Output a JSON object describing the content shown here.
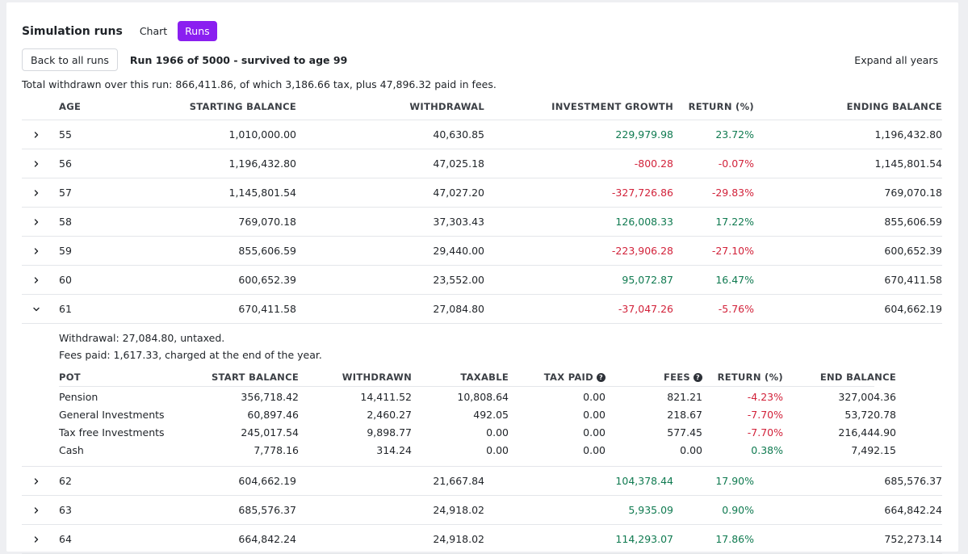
{
  "header": {
    "title": "Simulation runs",
    "tabs": [
      {
        "label": "Chart",
        "active": false
      },
      {
        "label": "Runs",
        "active": true
      }
    ]
  },
  "run": {
    "back_label": "Back to all runs",
    "title": "Run 1966 of 5000 - survived to age 99",
    "expand_all_label": "Expand all years",
    "summary": "Total withdrawn over this run: 866,411.86, of which 3,186.66 tax, plus 47,896.32 paid in fees."
  },
  "table": {
    "columns": {
      "age": "AGE",
      "start": "STARTING BALANCE",
      "withdrawal": "WITHDRAWAL",
      "growth": "INVESTMENT GROWTH",
      "return": "RETURN (%)",
      "end": "ENDING BALANCE"
    },
    "rows_before": [
      {
        "age": "55",
        "start": "1,010,000.00",
        "withdrawal": "40,630.85",
        "growth": "229,979.98",
        "return": "23.72%",
        "end": "1,196,432.80",
        "sign": "pos"
      },
      {
        "age": "56",
        "start": "1,196,432.80",
        "withdrawal": "47,025.18",
        "growth": "-800.28",
        "return": "-0.07%",
        "end": "1,145,801.54",
        "sign": "neg"
      },
      {
        "age": "57",
        "start": "1,145,801.54",
        "withdrawal": "47,027.20",
        "growth": "-327,726.86",
        "return": "-29.83%",
        "end": "769,070.18",
        "sign": "neg"
      },
      {
        "age": "58",
        "start": "769,070.18",
        "withdrawal": "37,303.43",
        "growth": "126,008.33",
        "return": "17.22%",
        "end": "855,606.59",
        "sign": "pos"
      },
      {
        "age": "59",
        "start": "855,606.59",
        "withdrawal": "29,440.00",
        "growth": "-223,906.28",
        "return": "-27.10%",
        "end": "600,652.39",
        "sign": "neg"
      },
      {
        "age": "60",
        "start": "600,652.39",
        "withdrawal": "23,552.00",
        "growth": "95,072.87",
        "return": "16.47%",
        "end": "670,411.58",
        "sign": "pos"
      }
    ],
    "expanded_row": {
      "age": "61",
      "start": "670,411.58",
      "withdrawal": "27,084.80",
      "growth": "-37,047.26",
      "return": "-5.76%",
      "end": "604,662.19",
      "sign": "neg"
    },
    "rows_after": [
      {
        "age": "62",
        "start": "604,662.19",
        "withdrawal": "21,667.84",
        "growth": "104,378.44",
        "return": "17.90%",
        "end": "685,576.37",
        "sign": "pos"
      },
      {
        "age": "63",
        "start": "685,576.37",
        "withdrawal": "24,918.02",
        "growth": "5,935.09",
        "return": "0.90%",
        "end": "664,842.24",
        "sign": "pos"
      },
      {
        "age": "64",
        "start": "664,842.24",
        "withdrawal": "24,918.02",
        "growth": "114,293.07",
        "return": "17.86%",
        "end": "752,273.14",
        "sign": "pos"
      }
    ]
  },
  "detail": {
    "withdrawal_line": "Withdrawal: 27,084.80, untaxed.",
    "fees_line": "Fees paid: 1,617.33, charged at the end of the year.",
    "columns": {
      "pot": "POT",
      "start": "START BALANCE",
      "withdrawn": "WITHDRAWN",
      "taxable": "TAXABLE",
      "tax_paid": "TAX PAID",
      "fees": "FEES",
      "return": "RETURN (%)",
      "end": "END BALANCE"
    },
    "pots": [
      {
        "pot": "Pension",
        "start": "356,718.42",
        "withdrawn": "14,411.52",
        "taxable": "10,808.64",
        "tax_paid": "0.00",
        "fees": "821.21",
        "return": "-4.23%",
        "end": "327,004.36",
        "sign": "neg"
      },
      {
        "pot": "General Investments",
        "start": "60,897.46",
        "withdrawn": "2,460.27",
        "taxable": "492.05",
        "tax_paid": "0.00",
        "fees": "218.67",
        "return": "-7.70%",
        "end": "53,720.78",
        "sign": "neg"
      },
      {
        "pot": "Tax free Investments",
        "start": "245,017.54",
        "withdrawn": "9,898.77",
        "taxable": "0.00",
        "tax_paid": "0.00",
        "fees": "577.45",
        "return": "-7.70%",
        "end": "216,444.90",
        "sign": "neg"
      },
      {
        "pot": "Cash",
        "start": "7,778.16",
        "withdrawn": "314.24",
        "taxable": "0.00",
        "tax_paid": "0.00",
        "fees": "0.00",
        "return": "0.38%",
        "end": "7,492.15",
        "sign": "pos"
      }
    ]
  },
  "colors": {
    "accent": "#8a1ff0",
    "positive": "#0f7a50",
    "negative": "#d2223a"
  },
  "icons": {
    "collapsed": "chevron-right-icon",
    "expanded": "chevron-down-icon",
    "help": "question-circle-icon"
  }
}
